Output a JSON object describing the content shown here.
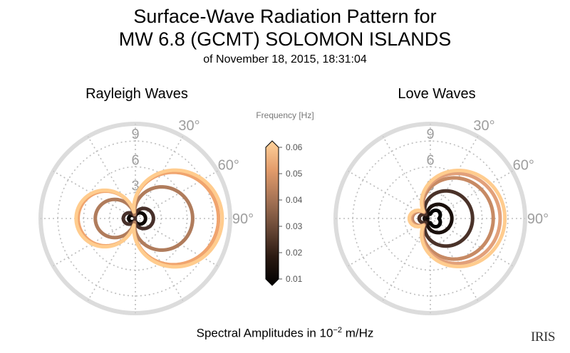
{
  "title_line1": "Surface-Wave Radiation Pattern for",
  "title_line2": "MW 6.8 (GCMT) SOLOMON ISLANDS",
  "subtitle": "of November 18, 2015, 18:31:04",
  "footer": {
    "text": "Spectral Amplitudes in ",
    "base": "10",
    "exponent": "−2",
    "unit": " m/Hz"
  },
  "logo_text": "IRIS",
  "colors": {
    "grid": "#dcdcdc",
    "grid_dotted": "#bdbdbd",
    "angle_label": "#9e9e9e",
    "bg": "#ffffff"
  },
  "chart_data": [
    {
      "type": "polar",
      "title": "Rayleigh Waves",
      "radial_ticks": [
        3,
        6,
        9
      ],
      "radial_max": 11,
      "angle_labels": [
        "30°",
        "60°",
        "90°"
      ],
      "zero_direction": "north",
      "series": [
        {
          "frequency": 0.01,
          "A": 0.9,
          "B": 0.2,
          "Q": 0.08,
          "D": 0.0,
          "color": "#0e0805"
        },
        {
          "frequency": 0.02,
          "A": 1.6,
          "B": 0.35,
          "Q": 0.15,
          "D": 0.0,
          "color": "#47302a"
        },
        {
          "frequency": 0.03,
          "A": 5.2,
          "B": 1.0,
          "Q": 0.45,
          "D": 0.0,
          "color": "#b07c5c"
        },
        {
          "frequency": 0.05,
          "A": 7.4,
          "B": 1.5,
          "Q": 0.75,
          "D": 0.0,
          "color": "#f0a46e"
        },
        {
          "frequency": 0.06,
          "A": 7.7,
          "B": 1.6,
          "Q": 0.78,
          "D": 0.0,
          "color": "#ffcc8e"
        }
      ]
    },
    {
      "type": "polar",
      "title": "Love Waves",
      "radial_ticks": [
        3,
        6,
        9
      ],
      "radial_max": 11,
      "angle_labels": [
        "30°",
        "60°",
        "90°"
      ],
      "zero_direction": "north",
      "series": [
        {
          "frequency": 0.01,
          "A": 0.5,
          "B": 0.35,
          "Q": 0.15,
          "D": 0.4,
          "color": "#000000"
        },
        {
          "frequency": 0.02,
          "A": 1.2,
          "B": 0.9,
          "Q": 0.4,
          "D": 0.0,
          "color": "#1a100c"
        },
        {
          "frequency": 0.03,
          "A": 2.4,
          "B": 1.8,
          "Q": 0.7,
          "D": 0.0,
          "color": "#4a3229"
        },
        {
          "frequency": 0.05,
          "A": 3.7,
          "B": 2.6,
          "Q": 1.0,
          "D": 0.0,
          "color": "#c78a64"
        },
        {
          "frequency": 0.055,
          "A": 4.1,
          "B": 2.9,
          "Q": 1.1,
          "D": 0.0,
          "color": "#e2a07a"
        },
        {
          "frequency": 0.06,
          "A": 4.4,
          "B": 3.1,
          "Q": 1.15,
          "D": 0.0,
          "color": "#ffcc8e"
        }
      ]
    }
  ],
  "colorbar": {
    "title": "Frequency [Hz]",
    "min": 0.01,
    "max": 0.06,
    "ticks": [
      "0.01",
      "0.02",
      "0.03",
      "0.04",
      "0.05",
      "0.06"
    ],
    "stops": [
      "#000000",
      "#2b1a12",
      "#6b4a38",
      "#a87556",
      "#e39c6b",
      "#ffd29b"
    ]
  }
}
